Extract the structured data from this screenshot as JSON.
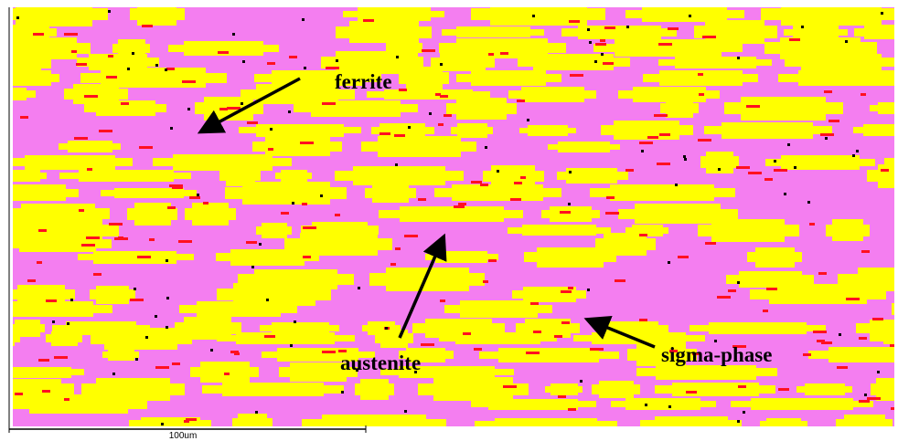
{
  "annotations": [
    {
      "label": "ferrite"
    },
    {
      "label": "austenite"
    },
    {
      "label": "sigma-phase"
    }
  ],
  "scale_bar": {
    "label": "100um"
  }
}
